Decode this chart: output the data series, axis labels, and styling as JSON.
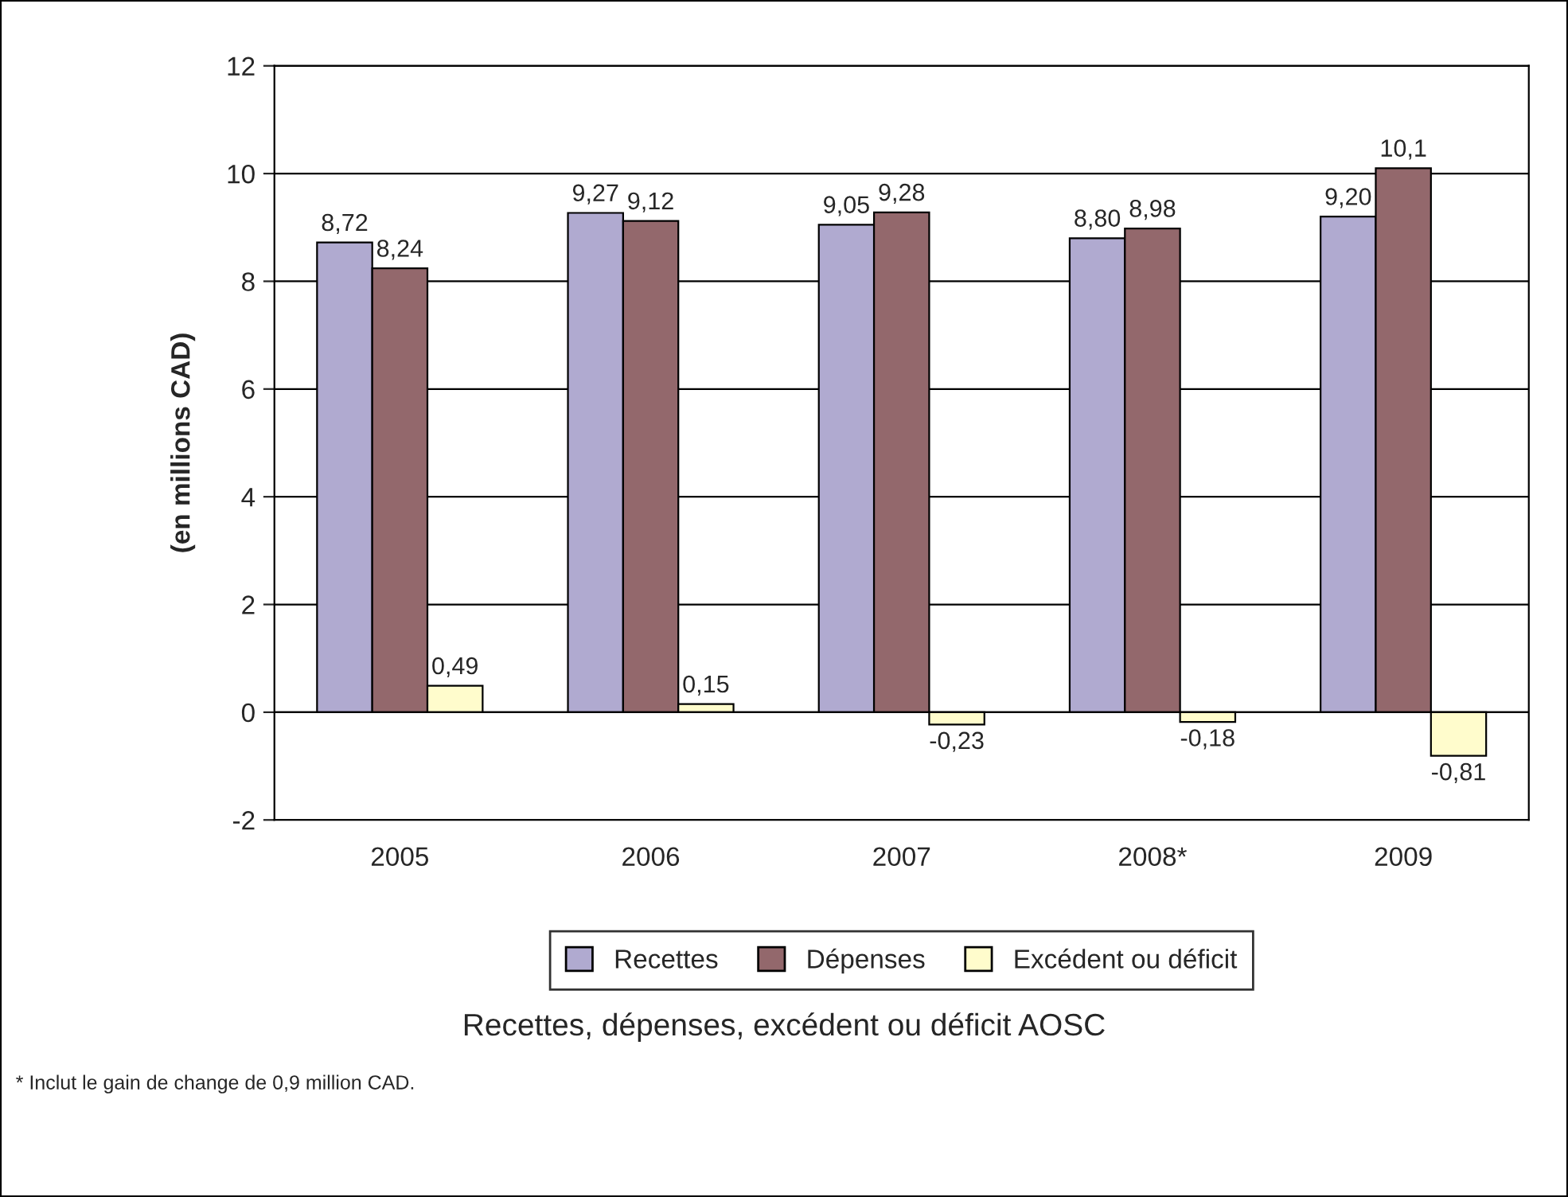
{
  "chart_data": {
    "type": "bar",
    "title": "Recettes, dépenses, excédent ou déficit AOSC",
    "ylabel": "(en millions CAD)",
    "categories": [
      "2005",
      "2006",
      "2007",
      "2008*",
      "2009"
    ],
    "series": [
      {
        "name": "Recettes",
        "color": "#b0aad0",
        "values": [
          8.72,
          9.27,
          9.05,
          8.8,
          9.2
        ],
        "value_labels": [
          "8,72",
          "9,27",
          "9,05",
          "8,80",
          "9,20"
        ]
      },
      {
        "name": "Dépenses",
        "color": "#93686c",
        "values": [
          8.24,
          9.12,
          9.28,
          8.98,
          10.1
        ],
        "value_labels": [
          "8,24",
          "9,12",
          "9,28",
          "8,98",
          "10,1"
        ]
      },
      {
        "name": "Excédent ou déficit",
        "color": "#fffccc",
        "values": [
          0.49,
          0.15,
          -0.23,
          -0.18,
          -0.81
        ],
        "value_labels": [
          "0,49",
          "0,15",
          "-0,23",
          "-0,18",
          "-0,81"
        ]
      }
    ],
    "ylim": [
      -2,
      12
    ],
    "yticks": [
      -2,
      0,
      2,
      4,
      6,
      8,
      10,
      12
    ],
    "grid": "y",
    "legend": "bottom",
    "annotations": [
      "* Inclut le gain de change de 0,9 million CAD."
    ]
  }
}
